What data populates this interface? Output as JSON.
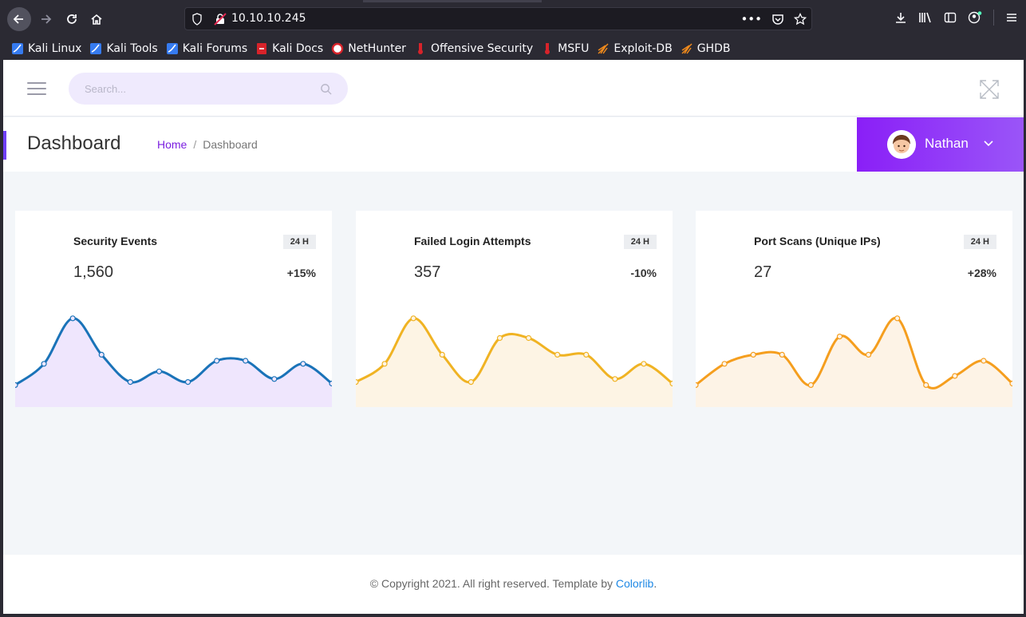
{
  "browser": {
    "url": "10.10.10.245",
    "bookmarks": [
      {
        "label": "Kali Linux",
        "icon": "kali-icon"
      },
      {
        "label": "Kali Tools",
        "icon": "kali-icon"
      },
      {
        "label": "Kali Forums",
        "icon": "kali-icon"
      },
      {
        "label": "Kali Docs",
        "icon": "kali-docs-icon"
      },
      {
        "label": "NetHunter",
        "icon": "nethunter-icon"
      },
      {
        "label": "Offensive Security",
        "icon": "offsec-icon"
      },
      {
        "label": "MSFU",
        "icon": "offsec-icon"
      },
      {
        "label": "Exploit-DB",
        "icon": "exploitdb-icon"
      },
      {
        "label": "GHDB",
        "icon": "exploitdb-icon"
      }
    ]
  },
  "topbar": {
    "search_placeholder": "Search..."
  },
  "titlebar": {
    "title": "Dashboard",
    "breadcrumb_home": "Home",
    "breadcrumb_sep": "/",
    "breadcrumb_current": "Dashboard",
    "user_name": "Nathan"
  },
  "colors": {
    "accent": "#7b1fe0",
    "series_blue": "#1a73b8",
    "series_yellow": "#f0b323",
    "series_orange": "#f59e1e"
  },
  "cards": [
    {
      "title": "Security Events",
      "badge": "24 H",
      "value": "1,560",
      "change": "+15%",
      "chart_data": {
        "type": "area",
        "values": [
          4,
          18,
          48,
          24,
          6,
          13,
          6,
          20,
          20,
          8,
          18,
          5
        ]
      }
    },
    {
      "title": "Failed Login Attempts",
      "badge": "24 H",
      "value": "357",
      "change": "-10%",
      "chart_data": {
        "type": "area",
        "values": [
          6,
          18,
          48,
          24,
          6,
          35,
          35,
          24,
          24,
          8,
          18,
          5
        ]
      }
    },
    {
      "title": "Port Scans (Unique IPs)",
      "badge": "24 H",
      "value": "27",
      "change": "+28%",
      "chart_data": {
        "type": "area",
        "values": [
          4,
          18,
          24,
          24,
          4,
          36,
          24,
          48,
          4,
          10,
          20,
          5
        ]
      }
    }
  ],
  "footer": {
    "text": "© Copyright 2021. All right reserved. Template by ",
    "link": "Colorlib",
    "end": "."
  }
}
